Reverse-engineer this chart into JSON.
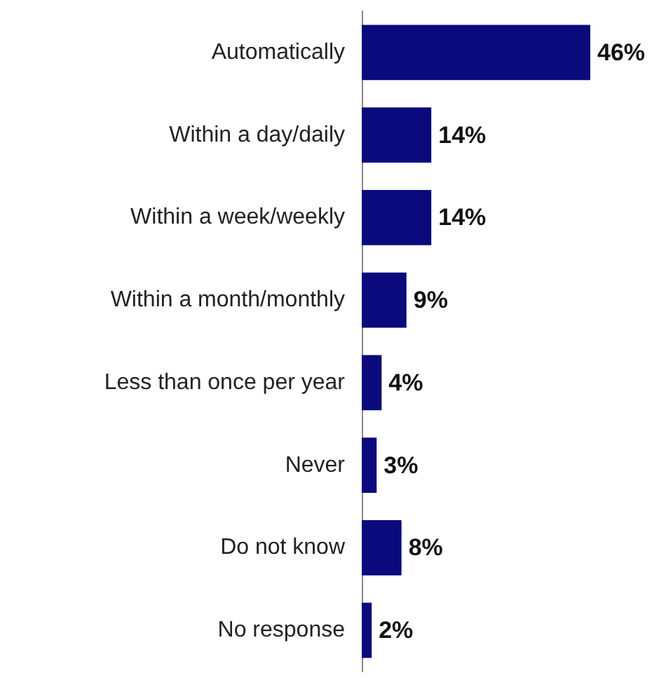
{
  "chart_data": {
    "type": "bar",
    "orientation": "horizontal",
    "categories": [
      "Automatically",
      "Within a day/daily",
      "Within a week/weekly",
      "Within a month/monthly",
      "Less than once per year",
      "Never",
      "Do not know",
      "No response"
    ],
    "values": [
      46,
      14,
      14,
      9,
      4,
      3,
      8,
      2
    ],
    "value_labels": [
      "46%",
      "14%",
      "14%",
      "9%",
      "4%",
      "3%",
      "8%",
      "2%"
    ],
    "color": "#0a0a7d",
    "tick_labels": "y"
  }
}
